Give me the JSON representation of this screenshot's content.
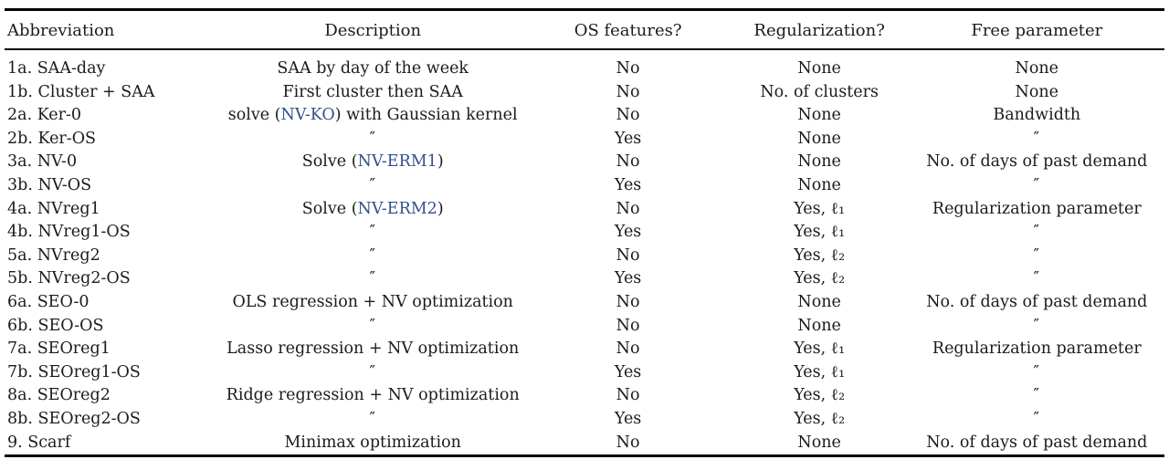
{
  "table": {
    "link_color": "#31518a",
    "ditto_mark": "″",
    "columns": [
      {
        "label": "Abbreviation"
      },
      {
        "label": "Description"
      },
      {
        "label": "OS features?"
      },
      {
        "label": "Regularization?"
      },
      {
        "label": "Free parameter"
      }
    ],
    "rows": [
      {
        "abbreviation": "1a. SAA-day",
        "description": {
          "text": "SAA by day of the week"
        },
        "os_features": "No",
        "regularization": "None",
        "free_parameter": "None"
      },
      {
        "abbreviation": "1b. Cluster + SAA",
        "description": {
          "text": "First cluster then SAA"
        },
        "os_features": "No",
        "regularization": "No. of clusters",
        "free_parameter": "None"
      },
      {
        "abbreviation": "2a. Ker-0",
        "description": {
          "pre": "solve (",
          "link": "NV-KO",
          "post": ") with Gaussian kernel"
        },
        "os_features": "No",
        "regularization": "None",
        "free_parameter": "Bandwidth"
      },
      {
        "abbreviation": "2b. Ker-OS",
        "description": {
          "text": "″"
        },
        "os_features": "Yes",
        "regularization": "None",
        "free_parameter": "″"
      },
      {
        "abbreviation": "3a. NV-0",
        "description": {
          "pre": "Solve (",
          "link": "NV-ERM1",
          "post": ")"
        },
        "os_features": "No",
        "regularization": "None",
        "free_parameter": "No. of days of past demand"
      },
      {
        "abbreviation": "3b. NV-OS",
        "description": {
          "text": "″"
        },
        "os_features": "Yes",
        "regularization": "None",
        "free_parameter": "″"
      },
      {
        "abbreviation": "4a. NVreg1",
        "description": {
          "pre": "Solve (",
          "link": "NV-ERM2",
          "post": ")"
        },
        "os_features": "No",
        "regularization": "Yes, ℓ₁",
        "free_parameter": "Regularization parameter"
      },
      {
        "abbreviation": "4b. NVreg1-OS",
        "description": {
          "text": "″"
        },
        "os_features": "Yes",
        "regularization": "Yes, ℓ₁",
        "free_parameter": "″"
      },
      {
        "abbreviation": "5a. NVreg2",
        "description": {
          "text": "″"
        },
        "os_features": "No",
        "regularization": "Yes, ℓ₂",
        "free_parameter": "″"
      },
      {
        "abbreviation": "5b. NVreg2-OS",
        "description": {
          "text": "″"
        },
        "os_features": "Yes",
        "regularization": "Yes, ℓ₂",
        "free_parameter": "″"
      },
      {
        "abbreviation": "6a. SEO-0",
        "description": {
          "text": "OLS regression + NV optimization"
        },
        "os_features": "No",
        "regularization": "None",
        "free_parameter": "No. of days of past demand"
      },
      {
        "abbreviation": "6b. SEO-OS",
        "description": {
          "text": "″"
        },
        "os_features": "No",
        "regularization": "None",
        "free_parameter": "″"
      },
      {
        "abbreviation": "7a. SEOreg1",
        "description": {
          "text": "Lasso regression + NV optimization"
        },
        "os_features": "No",
        "regularization": "Yes, ℓ₁",
        "free_parameter": "Regularization parameter"
      },
      {
        "abbreviation": "7b. SEOreg1-OS",
        "description": {
          "text": "″"
        },
        "os_features": "Yes",
        "regularization": "Yes, ℓ₁",
        "free_parameter": "″"
      },
      {
        "abbreviation": "8a. SEOreg2",
        "description": {
          "text": "Ridge regression + NV optimization"
        },
        "os_features": "No",
        "regularization": "Yes, ℓ₂",
        "free_parameter": "″"
      },
      {
        "abbreviation": "8b. SEOreg2-OS",
        "description": {
          "text": "″"
        },
        "os_features": "Yes",
        "regularization": "Yes, ℓ₂",
        "free_parameter": "″"
      },
      {
        "abbreviation": "9. Scarf",
        "description": {
          "text": "Minimax optimization"
        },
        "os_features": "No",
        "regularization": "None",
        "free_parameter": "No. of days of past demand"
      }
    ]
  }
}
